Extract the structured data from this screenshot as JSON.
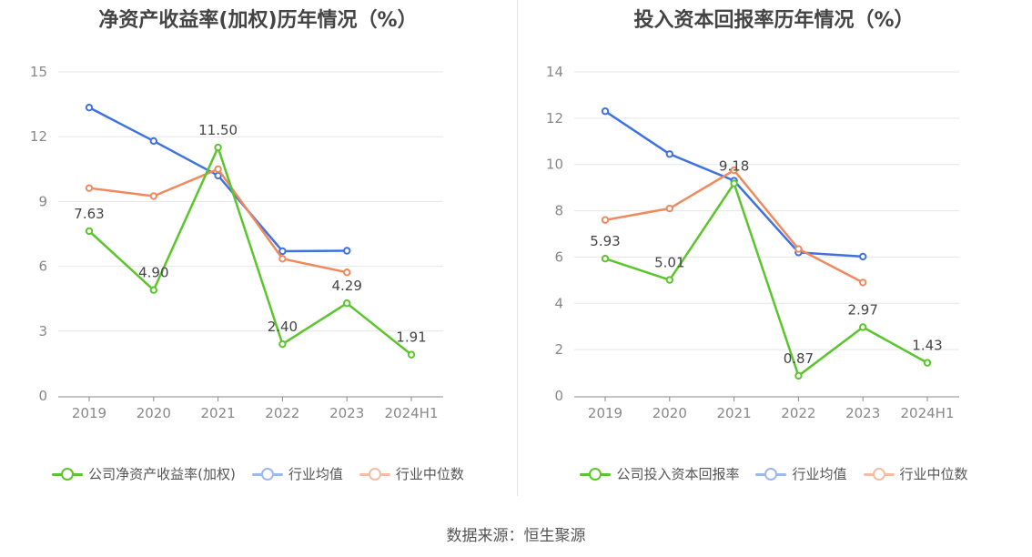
{
  "source": "数据来源：恒生聚源",
  "colors": {
    "company": "#5ac52c",
    "avg": "#3f72e0",
    "median": "#f08a5d"
  },
  "chart_data": [
    {
      "type": "line",
      "title": "净资产收益率(加权)历年情况（%）",
      "categories": [
        "2019",
        "2020",
        "2021",
        "2022",
        "2023",
        "2024H1"
      ],
      "ylim": [
        0,
        15
      ],
      "yticks": [
        0,
        3,
        6,
        9,
        12,
        15
      ],
      "ytick_labels": [
        "0",
        "3",
        "6",
        "9",
        "12",
        "15"
      ],
      "grid": true,
      "legend_position": "bottom",
      "series": [
        {
          "name": "公司净资产收益率(加权)",
          "key": "company",
          "values": [
            7.63,
            4.9,
            11.5,
            2.4,
            4.29,
            1.91
          ],
          "labels": [
            "7.63",
            "4.90",
            "11.50",
            "2.40",
            "4.29",
            "1.91"
          ]
        },
        {
          "name": "行业均值",
          "key": "avg",
          "values": [
            13.35,
            11.8,
            10.2,
            6.7,
            6.72,
            null
          ]
        },
        {
          "name": "行业中位数",
          "key": "median",
          "values": [
            9.62,
            9.25,
            10.5,
            6.35,
            5.72,
            null
          ]
        }
      ]
    },
    {
      "type": "line",
      "title": "投入资本回报率历年情况（%）",
      "categories": [
        "2019",
        "2020",
        "2021",
        "2022",
        "2023",
        "2024H1"
      ],
      "ylim": [
        0,
        14
      ],
      "yticks": [
        0,
        2,
        4,
        6,
        8,
        10,
        12,
        14
      ],
      "ytick_labels": [
        "0",
        "2",
        "4",
        "6",
        "8",
        "10",
        "12",
        "14"
      ],
      "grid": true,
      "legend_position": "bottom",
      "series": [
        {
          "name": "公司投入资本回报率",
          "key": "company",
          "values": [
            5.93,
            5.01,
            9.18,
            0.87,
            2.97,
            1.43
          ],
          "labels": [
            "5.93",
            "5.01",
            "9.18",
            "0.87",
            "2.97",
            "1.43"
          ]
        },
        {
          "name": "行业均值",
          "key": "avg",
          "values": [
            12.3,
            10.45,
            9.3,
            6.2,
            6.02,
            null
          ]
        },
        {
          "name": "行业中位数",
          "key": "median",
          "values": [
            7.6,
            8.1,
            9.75,
            6.35,
            4.9,
            null
          ]
        }
      ]
    }
  ]
}
